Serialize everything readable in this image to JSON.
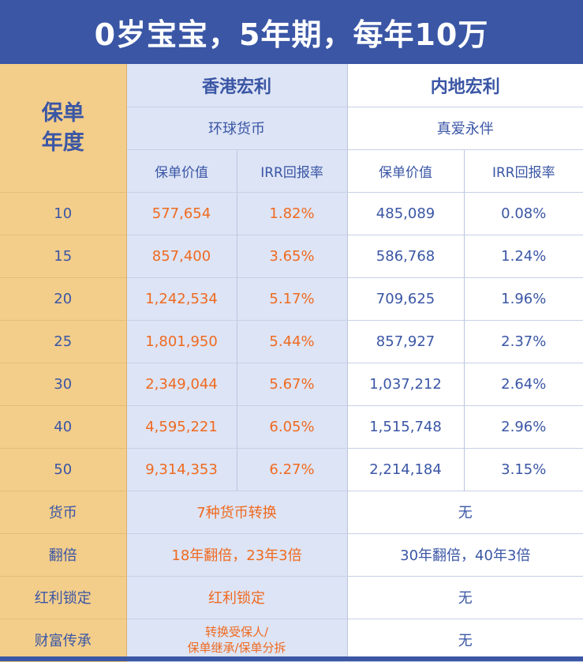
{
  "title": "0岁宝宝，5年期，每年10万",
  "header": {
    "year_label": "保单年度",
    "hk": {
      "brand": "香港宏利",
      "product": "环球货币",
      "value_label": "保单价值",
      "irr_label": "IRR回报率"
    },
    "ml": {
      "brand": "内地宏利",
      "product": "真爱永伴",
      "value_label": "保单价值",
      "irr_label": "IRR回报率"
    }
  },
  "rows": [
    {
      "year": "10",
      "hk_value": "577,654",
      "hk_irr": "1.82%",
      "ml_value": "485,089",
      "ml_irr": "0.08%"
    },
    {
      "year": "15",
      "hk_value": "857,400",
      "hk_irr": "3.65%",
      "ml_value": "586,768",
      "ml_irr": "1.24%"
    },
    {
      "year": "20",
      "hk_value": "1,242,534",
      "hk_irr": "5.17%",
      "ml_value": "709,625",
      "ml_irr": "1.96%"
    },
    {
      "year": "25",
      "hk_value": "1,801,950",
      "hk_irr": "5.44%",
      "ml_value": "857,927",
      "ml_irr": "2.37%"
    },
    {
      "year": "30",
      "hk_value": "2,349,044",
      "hk_irr": "5.67%",
      "ml_value": "1,037,212",
      "ml_irr": "2.64%"
    },
    {
      "year": "40",
      "hk_value": "4,595,221",
      "hk_irr": "6.05%",
      "ml_value": "1,515,748",
      "ml_irr": "2.96%"
    },
    {
      "year": "50",
      "hk_value": "9,314,353",
      "hk_irr": "6.27%",
      "ml_value": "2,214,184",
      "ml_irr": "3.15%"
    }
  ],
  "features": [
    {
      "label": "货币",
      "hk": "7种货币转换",
      "ml": "无"
    },
    {
      "label": "翻倍",
      "hk": "18年翻倍，23年3倍",
      "ml": "30年翻倍，40年3倍"
    },
    {
      "label": "红利锁定",
      "hk": "红利锁定",
      "ml": "无"
    },
    {
      "label": "财富传承",
      "hk_line1": "转换受保人/",
      "hk_line2": "保单继承/保单分拆",
      "ml": "无"
    }
  ]
}
